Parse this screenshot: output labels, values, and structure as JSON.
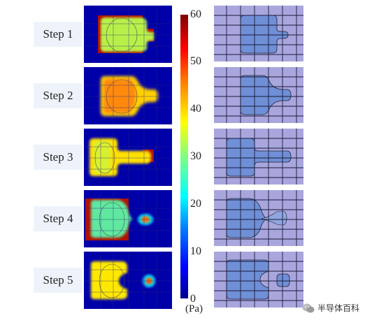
{
  "steps": [
    {
      "label": "Step 1"
    },
    {
      "label": "Step 2"
    },
    {
      "label": "Step 3"
    },
    {
      "label": "Step 4"
    },
    {
      "label": "Step 5"
    }
  ],
  "colorbar": {
    "ticks": [
      "60",
      "50",
      "40",
      "30",
      "20",
      "10",
      "0"
    ],
    "unit": "(Pa)",
    "min": 0,
    "max": 60
  },
  "colors": {
    "background_blue": "#0000a8",
    "high_red": "#b01000",
    "photo_grid_bg": "#a9a6de",
    "photo_droplet": "#6f8fd6"
  },
  "watermark": {
    "text": "半导体百科"
  }
}
